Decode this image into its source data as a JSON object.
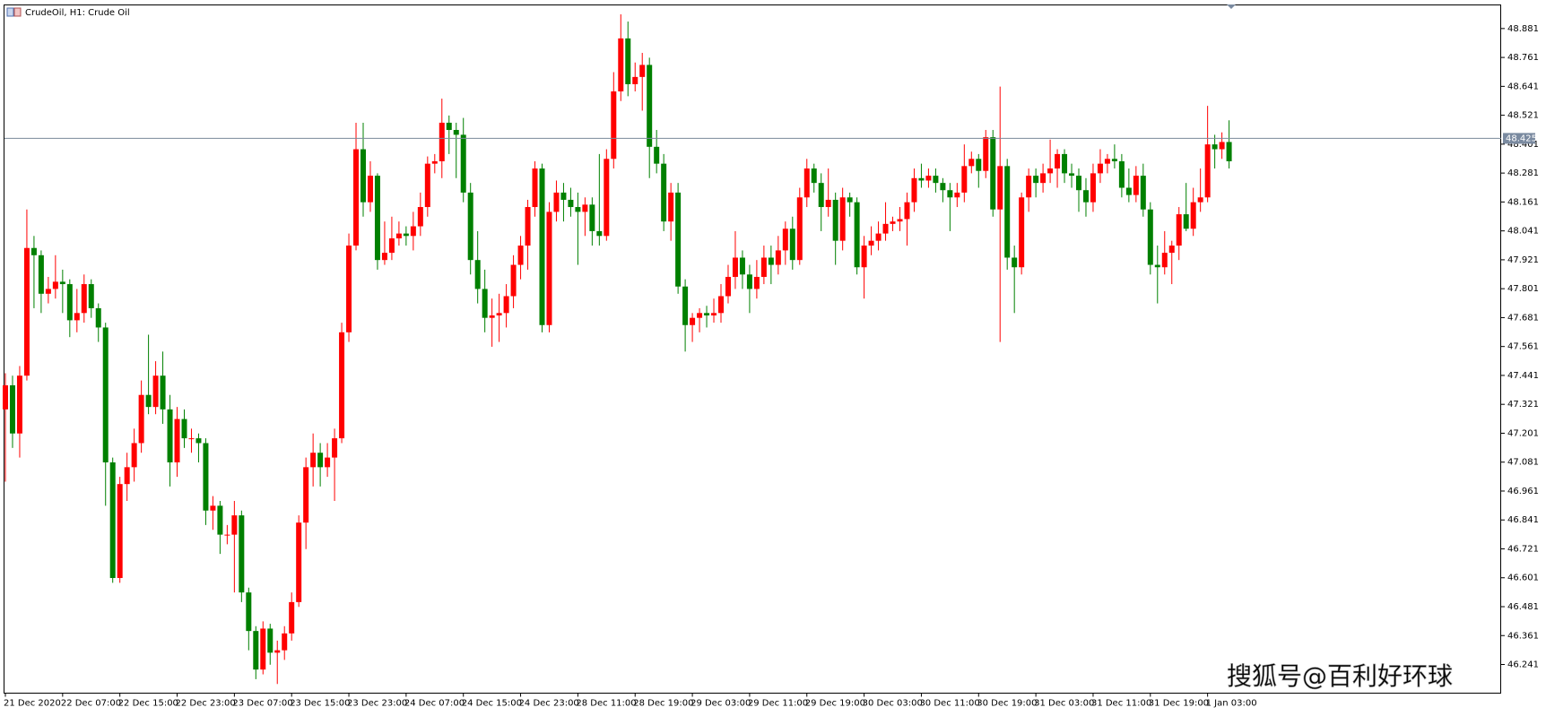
{
  "chart_data": {
    "type": "candlestick",
    "title": "CrudeOil, H1:  Crude Oil",
    "watermark": "搜狐号@百利好环球",
    "up_color": "#ff0000",
    "down_color": "#008000",
    "ylim": [
      46.122,
      48.979
    ],
    "yticks": [
      48.881,
      48.761,
      48.641,
      48.521,
      48.401,
      48.281,
      48.161,
      48.041,
      47.921,
      47.801,
      47.681,
      47.561,
      47.441,
      47.321,
      47.201,
      47.081,
      46.961,
      46.841,
      46.721,
      46.601,
      46.481,
      46.361,
      46.241
    ],
    "current_price": 48.425,
    "categories": [
      "21 Dec 2020",
      null,
      null,
      null,
      null,
      null,
      null,
      null,
      "22 Dec 07:00",
      null,
      null,
      null,
      null,
      null,
      null,
      null,
      "22 Dec 15:00",
      null,
      null,
      null,
      null,
      null,
      null,
      null,
      "22 Dec 23:00",
      null,
      null,
      null,
      null,
      null,
      null,
      null,
      "23 Dec 07:00",
      null,
      null,
      null,
      null,
      null,
      null,
      null,
      "23 Dec 15:00",
      null,
      null,
      null,
      null,
      null,
      null,
      null,
      "23 Dec 23:00",
      null,
      null,
      null,
      null,
      null,
      null,
      null,
      "24 Dec 07:00",
      null,
      null,
      null,
      null,
      null,
      null,
      null,
      "24 Dec 15:00",
      null,
      null,
      null,
      null,
      null,
      null,
      null,
      "24 Dec 23:00",
      null,
      null,
      null,
      null,
      null,
      null,
      null,
      "28 Dec 11:00",
      null,
      null,
      null,
      null,
      null,
      null,
      null,
      "28 Dec 19:00",
      null,
      null,
      null,
      null,
      null,
      null,
      null,
      "29 Dec 03:00",
      null,
      null,
      null,
      null,
      null,
      null,
      null,
      "29 Dec 11:00",
      null,
      null,
      null,
      null,
      null,
      null,
      null,
      "29 Dec 19:00",
      null,
      null,
      null,
      null,
      null,
      null,
      null,
      "30 Dec 03:00",
      null,
      null,
      null,
      null,
      null,
      null,
      null,
      "30 Dec 11:00",
      null,
      null,
      null,
      null,
      null,
      null,
      null,
      "30 Dec 19:00",
      null,
      null,
      null,
      null,
      null,
      null,
      null,
      "31 Dec 03:00",
      null,
      null,
      null,
      null,
      null,
      null,
      null,
      "31 Dec 11:00",
      null,
      null,
      null,
      null,
      null,
      null,
      null,
      "31 Dec 19:00",
      null,
      null,
      null,
      null,
      null,
      null,
      null,
      "1 Jan 03:00",
      null,
      null,
      null
    ],
    "candles": [
      [
        47.3,
        47.45,
        47.0,
        47.4
      ],
      [
        47.4,
        47.44,
        47.14,
        47.2
      ],
      [
        47.2,
        47.48,
        47.1,
        47.44
      ],
      [
        47.44,
        48.13,
        47.42,
        47.97
      ],
      [
        47.97,
        48.02,
        47.72,
        47.94
      ],
      [
        47.94,
        47.96,
        47.7,
        47.78
      ],
      [
        47.78,
        47.85,
        47.74,
        47.8
      ],
      [
        47.8,
        47.94,
        47.76,
        47.83
      ],
      [
        47.83,
        47.88,
        47.7,
        47.82
      ],
      [
        47.82,
        47.84,
        47.6,
        47.67
      ],
      [
        47.67,
        47.8,
        47.62,
        47.7
      ],
      [
        47.7,
        47.86,
        47.66,
        47.82
      ],
      [
        47.82,
        47.84,
        47.68,
        47.72
      ],
      [
        47.72,
        47.74,
        47.58,
        47.64
      ],
      [
        47.64,
        47.66,
        46.9,
        47.08
      ],
      [
        47.08,
        47.1,
        46.58,
        46.6
      ],
      [
        46.6,
        47.02,
        46.58,
        46.99
      ],
      [
        46.99,
        47.12,
        46.92,
        47.06
      ],
      [
        47.06,
        47.22,
        47.0,
        47.16
      ],
      [
        47.16,
        47.42,
        47.12,
        47.36
      ],
      [
        47.36,
        47.61,
        47.28,
        47.31
      ],
      [
        47.31,
        47.5,
        47.28,
        47.44
      ],
      [
        47.44,
        47.54,
        47.24,
        47.3
      ],
      [
        47.3,
        47.36,
        46.98,
        47.08
      ],
      [
        47.08,
        47.31,
        47.02,
        47.26
      ],
      [
        47.26,
        47.3,
        47.14,
        47.18
      ],
      [
        47.18,
        47.22,
        47.12,
        47.18
      ],
      [
        47.18,
        47.2,
        47.08,
        47.16
      ],
      [
        47.16,
        47.18,
        46.82,
        46.88
      ],
      [
        46.88,
        46.94,
        46.8,
        46.9
      ],
      [
        46.9,
        46.92,
        46.7,
        46.78
      ],
      [
        46.78,
        46.82,
        46.74,
        46.78
      ],
      [
        46.78,
        46.92,
        46.54,
        46.86
      ],
      [
        46.86,
        46.88,
        46.5,
        46.54
      ],
      [
        46.54,
        46.56,
        46.3,
        46.38
      ],
      [
        46.38,
        46.4,
        46.18,
        46.22
      ],
      [
        46.22,
        46.42,
        46.2,
        46.39
      ],
      [
        46.39,
        46.41,
        46.24,
        46.29
      ],
      [
        46.29,
        46.34,
        46.16,
        46.3
      ],
      [
        46.3,
        46.4,
        46.26,
        46.37
      ],
      [
        46.37,
        46.54,
        46.34,
        46.5
      ],
      [
        46.5,
        46.86,
        46.48,
        46.83
      ],
      [
        46.83,
        47.1,
        46.72,
        47.06
      ],
      [
        47.06,
        47.2,
        46.98,
        47.12
      ],
      [
        47.12,
        47.16,
        46.98,
        47.06
      ],
      [
        47.06,
        47.16,
        47.02,
        47.1
      ],
      [
        47.1,
        47.22,
        46.92,
        47.18
      ],
      [
        47.18,
        47.66,
        47.16,
        47.62
      ],
      [
        47.62,
        48.03,
        47.58,
        47.98
      ],
      [
        47.98,
        48.49,
        47.96,
        48.38
      ],
      [
        48.38,
        48.49,
        48.1,
        48.16
      ],
      [
        48.16,
        48.33,
        48.12,
        48.27
      ],
      [
        48.27,
        48.28,
        47.88,
        47.92
      ],
      [
        47.92,
        48.08,
        47.9,
        47.95
      ],
      [
        47.95,
        48.1,
        47.92,
        48.01
      ],
      [
        48.01,
        48.08,
        47.98,
        48.03
      ],
      [
        48.03,
        48.06,
        47.98,
        48.02
      ],
      [
        48.02,
        48.12,
        47.96,
        48.06
      ],
      [
        48.06,
        48.2,
        48.02,
        48.14
      ],
      [
        48.14,
        48.35,
        48.1,
        48.32
      ],
      [
        48.32,
        48.36,
        48.28,
        48.33
      ],
      [
        48.33,
        48.59,
        48.26,
        48.49
      ],
      [
        48.49,
        48.52,
        48.36,
        48.46
      ],
      [
        48.46,
        48.49,
        48.26,
        48.44
      ],
      [
        48.44,
        48.51,
        48.16,
        48.2
      ],
      [
        48.2,
        48.24,
        47.86,
        47.92
      ],
      [
        47.92,
        48.04,
        47.74,
        47.8
      ],
      [
        47.8,
        47.88,
        47.62,
        47.68
      ],
      [
        47.68,
        47.76,
        47.56,
        47.69
      ],
      [
        47.69,
        47.78,
        47.58,
        47.7
      ],
      [
        47.7,
        47.82,
        47.64,
        47.77
      ],
      [
        47.77,
        47.94,
        47.72,
        47.9
      ],
      [
        47.9,
        48.02,
        47.84,
        47.98
      ],
      [
        47.98,
        48.17,
        47.88,
        48.14
      ],
      [
        48.14,
        48.33,
        48.1,
        48.3
      ],
      [
        48.3,
        48.32,
        47.62,
        47.65
      ],
      [
        47.65,
        48.16,
        47.62,
        48.12
      ],
      [
        48.12,
        48.25,
        48.08,
        48.2
      ],
      [
        48.2,
        48.24,
        48.08,
        48.17
      ],
      [
        48.17,
        48.22,
        48.1,
        48.14
      ],
      [
        48.14,
        48.2,
        47.9,
        48.12
      ],
      [
        48.12,
        48.18,
        48.02,
        48.15
      ],
      [
        48.15,
        48.18,
        47.98,
        48.04
      ],
      [
        48.04,
        48.36,
        47.98,
        48.02
      ],
      [
        48.02,
        48.38,
        48.0,
        48.34
      ],
      [
        48.34,
        48.7,
        48.3,
        48.62
      ],
      [
        48.62,
        48.94,
        48.58,
        48.84
      ],
      [
        48.84,
        48.91,
        48.6,
        48.65
      ],
      [
        48.65,
        48.74,
        48.62,
        48.68
      ],
      [
        48.68,
        48.78,
        48.54,
        48.73
      ],
      [
        48.73,
        48.76,
        48.26,
        48.39
      ],
      [
        48.39,
        48.46,
        48.28,
        48.32
      ],
      [
        48.32,
        48.36,
        48.04,
        48.08
      ],
      [
        48.08,
        48.24,
        48.0,
        48.2
      ],
      [
        48.2,
        48.24,
        47.78,
        47.81
      ],
      [
        47.81,
        47.84,
        47.54,
        47.65
      ],
      [
        47.65,
        47.7,
        47.58,
        47.68
      ],
      [
        47.68,
        47.72,
        47.62,
        47.7
      ],
      [
        47.7,
        47.73,
        47.64,
        47.69
      ],
      [
        47.69,
        47.76,
        47.66,
        47.7
      ],
      [
        47.7,
        47.82,
        47.66,
        47.77
      ],
      [
        47.77,
        47.9,
        47.74,
        47.85
      ],
      [
        47.85,
        48.04,
        47.8,
        47.93
      ],
      [
        47.93,
        47.96,
        47.8,
        47.86
      ],
      [
        47.86,
        47.9,
        47.7,
        47.8
      ],
      [
        47.8,
        47.92,
        47.76,
        47.85
      ],
      [
        47.85,
        47.98,
        47.82,
        47.93
      ],
      [
        47.93,
        47.98,
        47.82,
        47.9
      ],
      [
        47.9,
        48.02,
        47.86,
        47.96
      ],
      [
        47.96,
        48.08,
        47.9,
        48.05
      ],
      [
        48.05,
        48.1,
        47.88,
        47.92
      ],
      [
        47.92,
        48.22,
        47.9,
        48.18
      ],
      [
        48.18,
        48.34,
        48.14,
        48.3
      ],
      [
        48.3,
        48.32,
        48.2,
        48.24
      ],
      [
        48.24,
        48.28,
        48.04,
        48.14
      ],
      [
        48.14,
        48.3,
        48.1,
        48.17
      ],
      [
        48.17,
        48.2,
        47.9,
        48.0
      ],
      [
        48.0,
        48.22,
        47.96,
        48.18
      ],
      [
        48.18,
        48.2,
        48.1,
        48.16
      ],
      [
        48.16,
        48.18,
        47.86,
        47.89
      ],
      [
        47.89,
        48.02,
        47.76,
        47.98
      ],
      [
        47.98,
        48.06,
        47.94,
        48.0
      ],
      [
        48.0,
        48.08,
        47.96,
        48.03
      ],
      [
        48.03,
        48.16,
        48.0,
        48.07
      ],
      [
        48.07,
        48.1,
        48.04,
        48.08
      ],
      [
        48.08,
        48.14,
        48.04,
        48.09
      ],
      [
        48.09,
        48.2,
        47.98,
        48.16
      ],
      [
        48.16,
        48.3,
        48.12,
        48.26
      ],
      [
        48.26,
        48.32,
        48.22,
        48.25
      ],
      [
        48.25,
        48.3,
        48.22,
        48.27
      ],
      [
        48.27,
        48.3,
        48.2,
        48.24
      ],
      [
        48.24,
        48.26,
        48.16,
        48.21
      ],
      [
        48.21,
        48.24,
        48.04,
        48.18
      ],
      [
        48.18,
        48.24,
        48.14,
        48.2
      ],
      [
        48.2,
        48.4,
        48.16,
        48.31
      ],
      [
        48.31,
        48.37,
        48.28,
        48.34
      ],
      [
        48.34,
        48.36,
        48.22,
        48.29
      ],
      [
        48.29,
        48.46,
        48.26,
        48.43
      ],
      [
        48.43,
        48.46,
        48.1,
        48.13
      ],
      [
        48.13,
        48.64,
        47.58,
        48.31
      ],
      [
        48.31,
        48.34,
        47.88,
        47.93
      ],
      [
        47.93,
        47.98,
        47.7,
        47.89
      ],
      [
        47.89,
        48.2,
        47.86,
        48.18
      ],
      [
        48.18,
        48.3,
        48.12,
        48.27
      ],
      [
        48.27,
        48.3,
        48.18,
        48.24
      ],
      [
        48.24,
        48.32,
        48.2,
        48.28
      ],
      [
        48.28,
        48.42,
        48.24,
        48.3
      ],
      [
        48.3,
        48.38,
        48.22,
        48.36
      ],
      [
        48.36,
        48.38,
        48.24,
        48.28
      ],
      [
        48.28,
        48.32,
        48.22,
        48.27
      ],
      [
        48.27,
        48.3,
        48.12,
        48.21
      ],
      [
        48.21,
        48.26,
        48.1,
        48.16
      ],
      [
        48.16,
        48.32,
        48.12,
        48.28
      ],
      [
        48.28,
        48.38,
        48.24,
        48.32
      ],
      [
        48.32,
        48.36,
        48.28,
        48.34
      ],
      [
        48.34,
        48.4,
        48.3,
        48.33
      ],
      [
        48.33,
        48.36,
        48.18,
        48.22
      ],
      [
        48.22,
        48.3,
        48.16,
        48.19
      ],
      [
        48.19,
        48.31,
        48.16,
        48.27
      ],
      [
        48.27,
        48.32,
        48.1,
        48.13
      ],
      [
        48.13,
        48.16,
        47.86,
        47.9
      ],
      [
        47.9,
        47.98,
        47.74,
        47.89
      ],
      [
        47.89,
        48.04,
        47.86,
        47.95
      ],
      [
        47.95,
        48.0,
        47.82,
        47.98
      ],
      [
        47.98,
        48.14,
        47.92,
        48.11
      ],
      [
        48.11,
        48.24,
        48.04,
        48.05
      ],
      [
        48.05,
        48.22,
        48.02,
        48.16
      ],
      [
        48.16,
        48.3,
        48.12,
        48.18
      ],
      [
        48.18,
        48.56,
        48.16,
        48.4
      ],
      [
        48.4,
        48.44,
        48.3,
        48.38
      ],
      [
        48.38,
        48.45,
        48.34,
        48.41
      ],
      [
        48.41,
        48.5,
        48.3,
        48.33
      ]
    ]
  }
}
